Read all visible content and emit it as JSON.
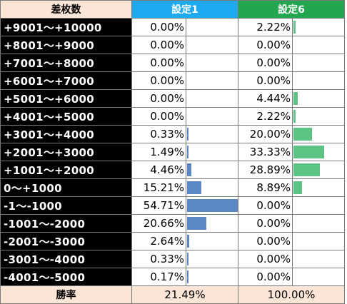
{
  "headers": {
    "range": "差枚数",
    "s1": "設定1",
    "s6": "設定6"
  },
  "scale_max_percent": 54.71,
  "rows": [
    {
      "range": "+9001～+10000",
      "s1": "0.00%",
      "s6": "2.22%",
      "s1_value": 0.0,
      "s6_value": 2.22
    },
    {
      "range": "+8001～+9000",
      "s1": "0.00%",
      "s6": "0.00%",
      "s1_value": 0.0,
      "s6_value": 0.0
    },
    {
      "range": "+7001～+8000",
      "s1": "0.00%",
      "s6": "0.00%",
      "s1_value": 0.0,
      "s6_value": 0.0
    },
    {
      "range": "+6001～+7000",
      "s1": "0.00%",
      "s6": "0.00%",
      "s1_value": 0.0,
      "s6_value": 0.0
    },
    {
      "range": "+5001～+6000",
      "s1": "0.00%",
      "s6": "4.44%",
      "s1_value": 0.0,
      "s6_value": 4.44
    },
    {
      "range": "+4001～+5000",
      "s1": "0.00%",
      "s6": "2.22%",
      "s1_value": 0.0,
      "s6_value": 2.22
    },
    {
      "range": "+3001～+4000",
      "s1": "0.33%",
      "s6": "20.00%",
      "s1_value": 0.33,
      "s6_value": 20.0
    },
    {
      "range": "+2001～+3000",
      "s1": "1.49%",
      "s6": "33.33%",
      "s1_value": 1.49,
      "s6_value": 33.33
    },
    {
      "range": "+1001～+2000",
      "s1": "4.46%",
      "s6": "28.89%",
      "s1_value": 4.46,
      "s6_value": 28.89
    },
    {
      "range": "0～+1000",
      "s1": "15.21%",
      "s6": "8.89%",
      "s1_value": 15.21,
      "s6_value": 8.89
    },
    {
      "range": "-1～-1000",
      "s1": "54.71%",
      "s6": "0.00%",
      "s1_value": 54.71,
      "s6_value": 0.0
    },
    {
      "range": "-1001～-2000",
      "s1": "20.66%",
      "s6": "0.00%",
      "s1_value": 20.66,
      "s6_value": 0.0
    },
    {
      "range": "-2001～-3000",
      "s1": "2.64%",
      "s6": "0.00%",
      "s1_value": 2.64,
      "s6_value": 0.0
    },
    {
      "range": "-3001～-4000",
      "s1": "0.33%",
      "s6": "0.00%",
      "s1_value": 0.33,
      "s6_value": 0.0
    },
    {
      "range": "-4001～-5000",
      "s1": "0.17%",
      "s6": "0.00%",
      "s1_value": 0.17,
      "s6_value": 0.0
    }
  ],
  "footer": {
    "label": "勝率",
    "s1": "21.49%",
    "s6": "100.00%"
  },
  "colors": {
    "s1_header": "#1eaaf1",
    "s6_header": "#22a64f",
    "s1_bar": "#5b87c6",
    "s6_bar": "#5cc384",
    "range_bg": "#000000",
    "footer_bg": "#fbe5d6"
  }
}
